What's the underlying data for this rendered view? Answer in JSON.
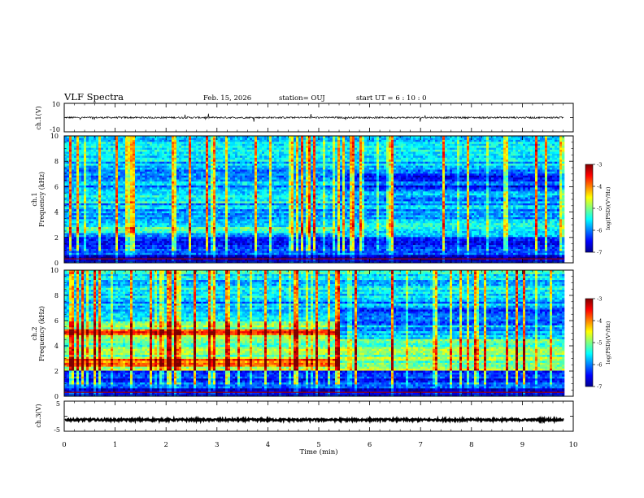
{
  "header": {
    "title": "VLF Spectra",
    "date": "Feb. 15, 2026",
    "station": "station= OUJ",
    "start_ut": "start UT =   6 : 10 : 0"
  },
  "chart_data": {
    "type": "heatmap",
    "title": "VLF Spectra",
    "x": {
      "label": "Time (min)",
      "range": [
        0,
        10
      ],
      "ticks": [
        "0",
        "1",
        "2",
        "3",
        "4",
        "5",
        "6",
        "7",
        "8",
        "9",
        "10"
      ]
    },
    "panels": [
      {
        "id": "ch1-waveform",
        "type": "line",
        "ylabel": "ch.1(V)",
        "ylim": [
          -10,
          10
        ],
        "yticks": [
          "10",
          "-10"
        ],
        "baseline": 0,
        "amplitude": 0.6
      },
      {
        "id": "ch1-spectrogram",
        "type": "heatmap",
        "ylabel_top": "ch.1",
        "ylabel": "Frequency (kHz)",
        "ylim": [
          0,
          10
        ],
        "yticks": [
          "0",
          "2",
          "4",
          "6",
          "8",
          "10"
        ],
        "data_end_min": 9.82,
        "transition_min": 5.4,
        "colorbar": {
          "label": "log(PSD)(V²/Hz)",
          "range": [
            -7,
            -3
          ],
          "ticks": [
            "-3",
            "-4",
            "-5",
            "-6",
            "-7"
          ]
        },
        "bands_before": [
          {
            "low_khz": 2.3,
            "high_khz": 2.8,
            "level": 0.45
          },
          {
            "low_khz": 4.7,
            "high_khz": 5.3,
            "level": 0.42
          }
        ],
        "bands_after": [
          {
            "low_khz": 2.0,
            "high_khz": 3.4,
            "level": 0.36
          }
        ]
      },
      {
        "id": "ch2-spectrogram",
        "type": "heatmap",
        "ylabel_top": "ch.2",
        "ylabel": "Frequency (kHz)",
        "ylim": [
          0,
          10
        ],
        "yticks": [
          "0",
          "2",
          "4",
          "6",
          "8",
          "10"
        ],
        "data_end_min": 9.82,
        "transition_min": 5.4,
        "colorbar": {
          "label": "log(PSD)(V²/Hz)",
          "range": [
            -7,
            -3
          ],
          "ticks": [
            "-3",
            "-4",
            "-5",
            "-6",
            "-7"
          ]
        },
        "bands_before": [
          {
            "low_khz": 2.4,
            "high_khz": 2.9,
            "level": 0.78
          },
          {
            "low_khz": 4.8,
            "high_khz": 5.3,
            "level": 0.82
          },
          {
            "low_khz": 2.0,
            "high_khz": 6.0,
            "level": 0.5
          }
        ],
        "bands_after": [
          {
            "low_khz": 2.0,
            "high_khz": 4.5,
            "level": 0.5
          }
        ]
      },
      {
        "id": "ch3-waveform",
        "type": "line",
        "ylabel": "ch.3(V)",
        "ylim": [
          -5,
          5
        ],
        "yticks": [
          "5",
          "-5"
        ],
        "baseline": -1.2,
        "amplitude": 0.35
      }
    ]
  }
}
